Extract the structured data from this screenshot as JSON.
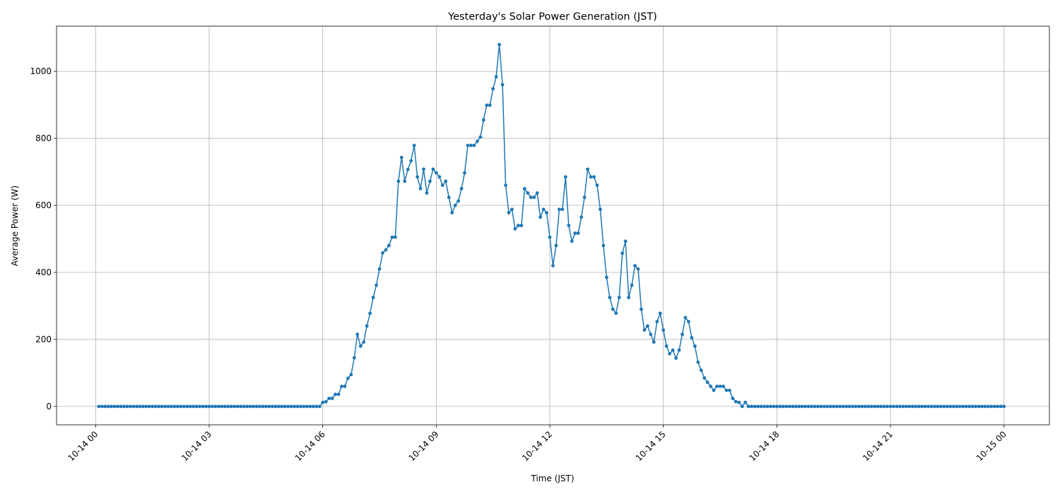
{
  "chart_data": {
    "type": "line",
    "title": "Yesterday's Solar Power Generation (JST)",
    "x_label": "Time (JST)",
    "y_label": "Average Power (W)",
    "color": "#1f77b4",
    "grid": true,
    "xlim": [
      -62,
      1512
    ],
    "ylim": [
      -55,
      1135
    ],
    "xticks": [
      {
        "value": 0,
        "label": "10-14 00"
      },
      {
        "value": 180,
        "label": "10-14 03"
      },
      {
        "value": 360,
        "label": "10-14 06"
      },
      {
        "value": 540,
        "label": "10-14 09"
      },
      {
        "value": 720,
        "label": "10-14 12"
      },
      {
        "value": 900,
        "label": "10-14 15"
      },
      {
        "value": 1080,
        "label": "10-14 18"
      },
      {
        "value": 1260,
        "label": "10-14 21"
      },
      {
        "value": 1440,
        "label": "10-15 00"
      }
    ],
    "yticks": [
      0,
      200,
      400,
      600,
      800,
      1000
    ],
    "x": [
      5,
      10,
      15,
      20,
      25,
      30,
      35,
      40,
      45,
      50,
      55,
      60,
      65,
      70,
      75,
      80,
      85,
      90,
      95,
      100,
      105,
      110,
      115,
      120,
      125,
      130,
      135,
      140,
      145,
      150,
      155,
      160,
      165,
      170,
      175,
      180,
      185,
      190,
      195,
      200,
      205,
      210,
      215,
      220,
      225,
      230,
      235,
      240,
      245,
      250,
      255,
      260,
      265,
      270,
      275,
      280,
      285,
      290,
      295,
      300,
      305,
      310,
      315,
      320,
      325,
      330,
      335,
      340,
      345,
      350,
      355,
      360,
      365,
      370,
      375,
      380,
      385,
      390,
      395,
      400,
      405,
      410,
      415,
      420,
      425,
      430,
      435,
      440,
      445,
      450,
      455,
      460,
      465,
      470,
      475,
      480,
      485,
      490,
      495,
      500,
      505,
      510,
      515,
      520,
      525,
      530,
      535,
      540,
      545,
      550,
      555,
      560,
      565,
      570,
      575,
      580,
      585,
      590,
      595,
      600,
      605,
      610,
      615,
      620,
      625,
      630,
      635,
      640,
      645,
      650,
      655,
      660,
      665,
      670,
      675,
      680,
      685,
      690,
      695,
      700,
      705,
      710,
      715,
      720,
      725,
      730,
      735,
      740,
      745,
      750,
      755,
      760,
      765,
      770,
      775,
      780,
      785,
      790,
      795,
      800,
      805,
      810,
      815,
      820,
      825,
      830,
      835,
      840,
      845,
      850,
      855,
      860,
      865,
      870,
      875,
      880,
      885,
      890,
      895,
      900,
      905,
      910,
      915,
      920,
      925,
      930,
      935,
      940,
      945,
      950,
      955,
      960,
      965,
      970,
      975,
      980,
      985,
      990,
      995,
      1000,
      1005,
      1010,
      1015,
      1020,
      1025,
      1030,
      1035,
      1040,
      1045,
      1050,
      1055,
      1060,
      1065,
      1070,
      1075,
      1080,
      1085,
      1090,
      1095,
      1100,
      1105,
      1110,
      1115,
      1120,
      1125,
      1130,
      1135,
      1140,
      1145,
      1150,
      1155,
      1160,
      1165,
      1170,
      1175,
      1180,
      1185,
      1190,
      1195,
      1200,
      1205,
      1210,
      1215,
      1220,
      1225,
      1230,
      1235,
      1240,
      1245,
      1250,
      1255,
      1260,
      1265,
      1270,
      1275,
      1280,
      1285,
      1290,
      1295,
      1300,
      1305,
      1310,
      1315,
      1320,
      1325,
      1330,
      1335,
      1340,
      1345,
      1350,
      1355,
      1360,
      1365,
      1370,
      1375,
      1380,
      1385,
      1390,
      1395,
      1400,
      1405,
      1410,
      1415,
      1420,
      1425,
      1430,
      1435,
      1440
    ],
    "values": [
      0,
      0,
      0,
      0,
      0,
      0,
      0,
      0,
      0,
      0,
      0,
      0,
      0,
      0,
      0,
      0,
      0,
      0,
      0,
      0,
      0,
      0,
      0,
      0,
      0,
      0,
      0,
      0,
      0,
      0,
      0,
      0,
      0,
      0,
      0,
      0,
      0,
      0,
      0,
      0,
      0,
      0,
      0,
      0,
      0,
      0,
      0,
      0,
      0,
      0,
      0,
      0,
      0,
      0,
      0,
      0,
      0,
      0,
      0,
      0,
      0,
      0,
      0,
      0,
      0,
      0,
      0,
      0,
      0,
      0,
      0,
      12,
      14,
      24,
      24,
      36,
      36,
      60,
      60,
      84,
      95,
      145,
      215,
      180,
      192,
      240,
      278,
      325,
      362,
      410,
      458,
      467,
      480,
      505,
      505,
      672,
      743,
      672,
      707,
      733,
      779,
      685,
      650,
      708,
      637,
      672,
      708,
      697,
      685,
      660,
      672,
      624,
      578,
      600,
      613,
      650,
      697,
      779,
      779,
      779,
      791,
      804,
      855,
      899,
      899,
      948,
      984,
      1080,
      960,
      660,
      578,
      588,
      530,
      540,
      540,
      650,
      637,
      624,
      624,
      637,
      565,
      588,
      578,
      505,
      420,
      480,
      588,
      588,
      685,
      540,
      493,
      517,
      517,
      565,
      624,
      708,
      685,
      685,
      660,
      588,
      480,
      385,
      325,
      290,
      278,
      325,
      457,
      493,
      325,
      362,
      420,
      410,
      290,
      228,
      240,
      215,
      192,
      253,
      278,
      228,
      180,
      157,
      168,
      144,
      168,
      215,
      265,
      253,
      205,
      180,
      132,
      108,
      85,
      72,
      60,
      48,
      60,
      60,
      60,
      48,
      48,
      24,
      14,
      12,
      0,
      12,
      0,
      0,
      0,
      0,
      0,
      0,
      0,
      0,
      0,
      0,
      0,
      0,
      0,
      0,
      0,
      0,
      0,
      0,
      0,
      0,
      0,
      0,
      0,
      0,
      0,
      0,
      0,
      0,
      0,
      0,
      0,
      0,
      0,
      0,
      0,
      0,
      0,
      0,
      0,
      0,
      0,
      0,
      0,
      0,
      0,
      0,
      0,
      0,
      0,
      0,
      0,
      0,
      0,
      0,
      0,
      0,
      0,
      0,
      0,
      0,
      0,
      0,
      0,
      0,
      0,
      0,
      0,
      0,
      0,
      0,
      0,
      0,
      0,
      0,
      0,
      0,
      0,
      0,
      0,
      0,
      0,
      0
    ]
  }
}
